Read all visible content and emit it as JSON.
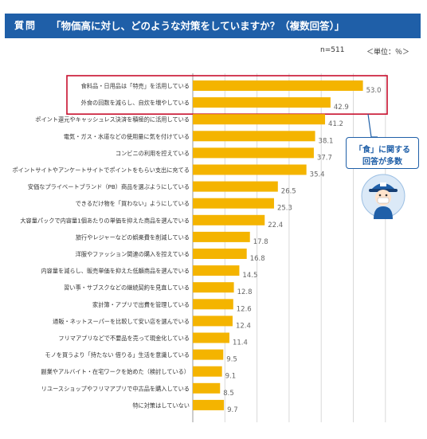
{
  "header": {
    "badge": "質問",
    "title": "「物価高に対し、どのような対策をしていますか？（複数回答）」"
  },
  "meta": {
    "n_label": "n=511",
    "unit_label": "＜単位：％＞"
  },
  "callout": {
    "line1": "「食」に関する",
    "line2": "回答が多数"
  },
  "colors": {
    "bar": "#f4b400",
    "header": "#1f5fa8",
    "highlight_box": "#c8102e",
    "grid": "#d9d9d9",
    "callout": "#1f5fa8"
  },
  "chart_data": {
    "type": "bar",
    "orientation": "horizontal",
    "title": "「物価高に対し、どのような対策をしていますか？（複数回答）」",
    "xlim": [
      0,
      60
    ],
    "grid": true,
    "highlighted_categories": [
      0,
      1
    ],
    "categories": [
      "食料品・日用品は「特売」を活用している",
      "外食の回数を減らし、自炊を増やしている",
      "ポイント還元やキャッシュレス決済を積極的に活用している",
      "電気・ガス・水道などの使用量に気を付けている",
      "コンビニの利用を控えている",
      "ポイントサイトやアンケートサイトでポイントをもらい支出に充てる",
      "安価なプライベートブランド（PB）商品を選ぶようにしている",
      "できるだけ物を「買わない」ようにしている",
      "大容量パックで内容量1個あたりの単価を抑えた商品を選んでいる",
      "旅行やレジャーなどの娯楽費を削減している",
      "洋服やファッション関連の購入を控えている",
      "内容量を減らし、販売単価を抑えた低額商品を選んでいる",
      "習い事・サブスクなどの継続契約を見直している",
      "家計簿・アプリで出費を管理している",
      "通販・ネットスーパーを比較して安い店を選んでいる",
      "フリマアプリなどで不要品を売って現金化している",
      "モノを買うより「持たない 借りる」生活を意識している",
      "副業やアルバイト・在宅ワークを始めた（検討している）",
      "リユースショップやフリマアプリで中古品を購入している",
      "特に対策はしていない"
    ],
    "values": [
      53.0,
      42.9,
      41.2,
      38.1,
      37.7,
      35.4,
      26.5,
      25.3,
      22.4,
      17.8,
      16.8,
      14.5,
      12.8,
      12.6,
      12.4,
      11.4,
      9.5,
      9.1,
      8.5,
      9.7
    ],
    "value_labels": [
      "53.0",
      "42.9",
      "41.2",
      "38.1",
      "37.7",
      "35.4",
      "26.5",
      "25.3",
      "22.4",
      "17.8",
      "16.8",
      "14.5",
      "12.8",
      "12.6",
      "12.4",
      "11.4",
      "9.5",
      "9.1",
      "8.5",
      "9.7"
    ]
  }
}
